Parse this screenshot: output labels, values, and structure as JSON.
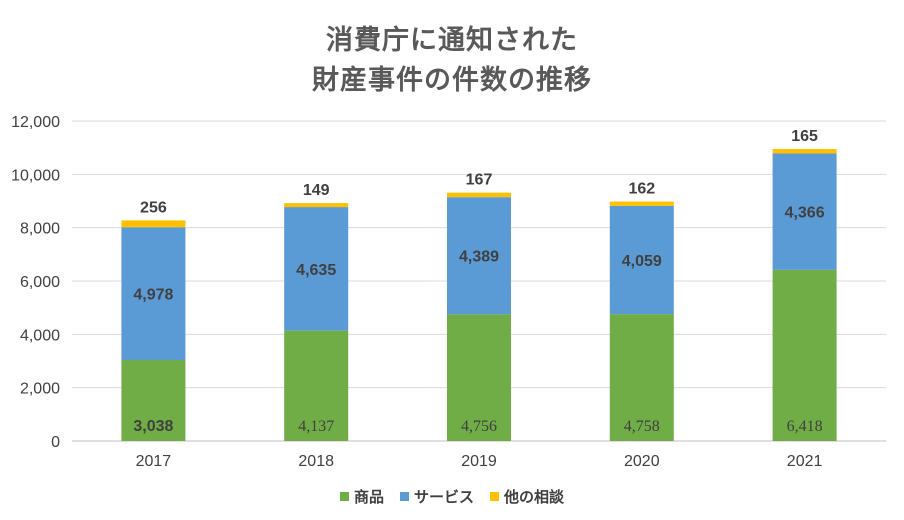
{
  "chart_data": {
    "type": "bar",
    "stacked": true,
    "title": "消費庁に通知された\n財産事件の件数の推移",
    "title_lines": [
      "消費庁に通知された",
      "財産事件の件数の推移"
    ],
    "categories": [
      "2017",
      "2018",
      "2019",
      "2020",
      "2021"
    ],
    "series": [
      {
        "name": "商品",
        "color": "#70ad47",
        "values": [
          3038,
          4137,
          4756,
          4758,
          6418
        ],
        "labels": [
          "3,038",
          "4,137",
          "4,756",
          "4,758",
          "6,418"
        ]
      },
      {
        "name": "サービス",
        "color": "#5b9bd5",
        "values": [
          4978,
          4635,
          4389,
          4059,
          4366
        ],
        "labels": [
          "4,978",
          "4,635",
          "4,389",
          "4,059",
          "4,366"
        ]
      },
      {
        "name": "他の相談",
        "color": "#ffc000",
        "values": [
          256,
          149,
          167,
          162,
          165
        ],
        "labels": [
          "256",
          "149",
          "167",
          "162",
          "165"
        ]
      }
    ],
    "ylim": [
      0,
      12000
    ],
    "yticks": [
      0,
      2000,
      4000,
      6000,
      8000,
      10000,
      12000
    ],
    "ytick_labels": [
      "0",
      "2,000",
      "4,000",
      "6,000",
      "8,000",
      "10,000",
      "12,000"
    ],
    "grid": true,
    "legend_position": "bottom"
  }
}
